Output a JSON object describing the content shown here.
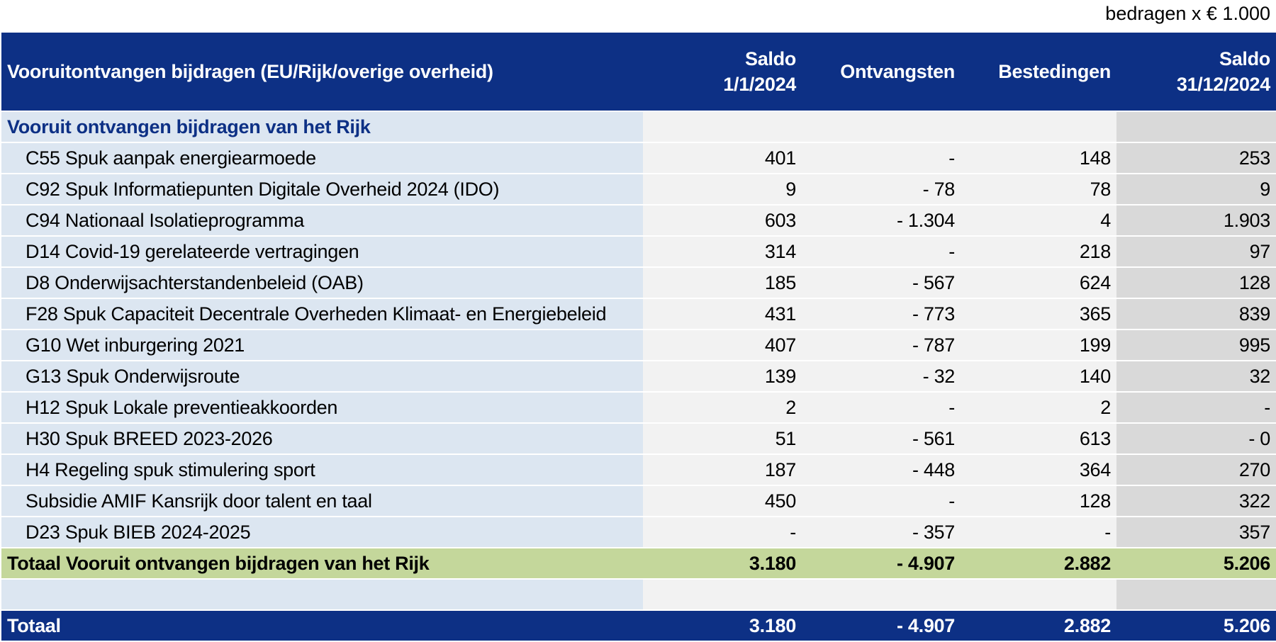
{
  "unit_note": "bedragen x € 1.000",
  "header": {
    "title": "Vooruitontvangen bijdragen (EU/Rijk/overige overheid)",
    "col1": [
      "Saldo",
      "1/1/2024"
    ],
    "col2": "Ontvangsten",
    "col3": "Bestedingen",
    "col4": [
      "Saldo",
      "31/12/2024"
    ]
  },
  "section_title": "Vooruit ontvangen bijdragen van het Rijk",
  "rows": [
    [
      "C55 Spuk aanpak energiearmoede",
      "401",
      "-",
      "148",
      "253"
    ],
    [
      "C92 Spuk Informatiepunten Digitale Overheid 2024 (IDO)",
      "9",
      "- 78",
      "78",
      "9"
    ],
    [
      "C94 Nationaal Isolatieprogramma",
      "603",
      "- 1.304",
      "4",
      "1.903"
    ],
    [
      "D14 Covid-19 gerelateerde vertragingen",
      "314",
      "-",
      "218",
      "97"
    ],
    [
      "D8 Onderwijsachterstandenbeleid (OAB)",
      "185",
      "- 567",
      "624",
      "128"
    ],
    [
      "F28 Spuk Capaciteit Decentrale Overheden Klimaat- en Energiebeleid",
      "431",
      "- 773",
      "365",
      "839"
    ],
    [
      "G10 Wet inburgering 2021",
      "407",
      "- 787",
      "199",
      "995"
    ],
    [
      "G13 Spuk Onderwijsroute",
      "139",
      "- 32",
      "140",
      "32"
    ],
    [
      "H12 Spuk Lokale preventieakkoorden",
      "2",
      "-",
      "2",
      "-"
    ],
    [
      "H30 Spuk BREED 2023-2026",
      "51",
      "- 561",
      "613",
      "- 0"
    ],
    [
      "H4 Regeling spuk stimulering sport",
      "187",
      "- 448",
      "364",
      "270"
    ],
    [
      "Subsidie AMIF Kansrijk door talent en taal",
      "450",
      "-",
      "128",
      "322"
    ],
    [
      "D23 Spuk BIEB 2024-2025",
      "-",
      "- 357",
      "-",
      "357"
    ]
  ],
  "subtotal": [
    "Totaal Vooruit ontvangen bijdragen van het Rijk",
    "3.180",
    "- 4.907",
    "2.882",
    "5.206"
  ],
  "total": [
    "Totaal",
    "3.180",
    "- 4.907",
    "2.882",
    "5.206"
  ]
}
